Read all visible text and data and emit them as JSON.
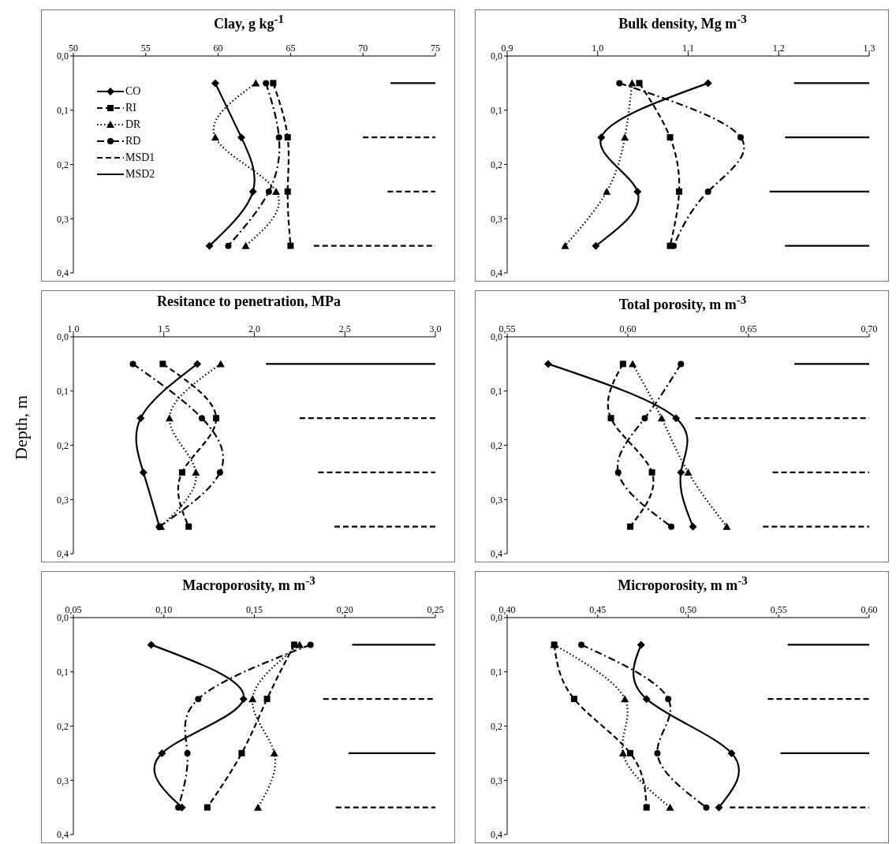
{
  "chart_data": [
    {
      "type": "line",
      "title": "Clay, g kg$^{-1}$",
      "legend": "top left",
      "xlim": [
        50,
        75
      ],
      "xticks": [
        50,
        55,
        60,
        65,
        70,
        75
      ],
      "ylim": [
        0.4,
        0
      ],
      "yticks": [
        {
          "value": 0,
          "label": "0,0"
        },
        {
          "value": 0.1,
          "label": "0,1"
        },
        {
          "value": 0.2,
          "label": "0,2"
        },
        {
          "value": 0.3,
          "label": "0,3"
        },
        {
          "value": 0.4,
          "label": "0,4"
        }
      ],
      "series": [
        {
          "name": "CO",
          "color": "#000000",
          "marker": "diamond",
          "line_style": "solid",
          "x": [
            59.8,
            61.6,
            62.4,
            59.4
          ],
          "values": [
            0.05,
            0.15,
            0.25,
            0.35
          ]
        },
        {
          "name": "RI",
          "color": "#000000",
          "marker": "square",
          "line_style": "dashed",
          "x": [
            63.8,
            64.8,
            64.8,
            65.0
          ],
          "values": [
            0.05,
            0.15,
            0.25,
            0.35
          ]
        },
        {
          "name": "DR",
          "color": "#000000",
          "marker": "triangle",
          "line_style": "dotted",
          "x": [
            62.6,
            59.8,
            64.0,
            61.9
          ],
          "values": [
            0.05,
            0.15,
            0.25,
            0.35
          ]
        },
        {
          "name": "RD",
          "color": "#000000",
          "marker": "circle",
          "line_style": "dashdot",
          "x": [
            63.3,
            64.2,
            63.5,
            60.7
          ],
          "values": [
            0.05,
            0.15,
            0.25,
            0.35
          ]
        },
        {
          "name": "MSD1",
          "color": "#000000",
          "marker": "none",
          "line_style": "dashed",
          "x": [
            70.0,
            75,
            null,
            71.7,
            75,
            null,
            66.6,
            75
          ],
          "values": [
            0.15,
            0.15,
            null,
            0.25,
            0.25,
            null,
            0.35,
            0.35
          ]
        },
        {
          "name": "MSD2",
          "color": "#000000",
          "marker": "none",
          "line_style": "solid",
          "x": [
            71.9,
            75
          ],
          "values": [
            0.05,
            0.05
          ]
        }
      ]
    },
    {
      "type": "line",
      "title": "Bulk density, Mg m$^{-3}$",
      "xlim": [
        0.9,
        1.3
      ],
      "xticks": [
        {
          "value": 0.9,
          "label": "0,9"
        },
        {
          "value": 1.0,
          "label": "1,0"
        },
        {
          "value": 1.1,
          "label": "1,1"
        },
        {
          "value": 1.2,
          "label": "1,2"
        },
        {
          "value": 1.3,
          "label": "1,3"
        }
      ],
      "ylim": [
        0.4,
        0
      ],
      "yticks": [
        {
          "value": 0,
          "label": "0,0"
        },
        {
          "value": 0.1,
          "label": "0,1"
        },
        {
          "value": 0.2,
          "label": "0,2"
        },
        {
          "value": 0.3,
          "label": "0,3"
        },
        {
          "value": 0.4,
          "label": "0,4"
        }
      ],
      "series": [
        {
          "color": "#000000",
          "marker": "diamond",
          "line_style": "solid",
          "x": [
            1.122,
            1.004,
            1.044,
            0.998
          ],
          "values": [
            0.05,
            0.15,
            0.25,
            0.35
          ]
        },
        {
          "color": "#000000",
          "marker": "square",
          "line_style": "dashed",
          "x": [
            1.046,
            1.08,
            1.09,
            1.08
          ],
          "values": [
            0.05,
            0.15,
            0.25,
            0.35
          ]
        },
        {
          "color": "#000000",
          "marker": "triangle",
          "line_style": "dotted",
          "x": [
            1.038,
            1.03,
            1.01,
            0.964
          ],
          "values": [
            0.05,
            0.15,
            0.25,
            0.35
          ]
        },
        {
          "color": "#000000",
          "marker": "circle",
          "line_style": "dashdot",
          "x": [
            1.024,
            1.158,
            1.122,
            1.084
          ],
          "values": [
            0.05,
            0.15,
            0.25,
            0.35
          ]
        },
        {
          "color": "#000000",
          "marker": "none",
          "line_style": "solid",
          "x": [
            1.217,
            1.3
          ],
          "values": [
            0.05,
            0.05
          ]
        },
        {
          "color": "#000000",
          "marker": "none",
          "line_style": "solid",
          "x": [
            1.207,
            1.3
          ],
          "values": [
            0.15,
            0.15
          ]
        },
        {
          "color": "#000000",
          "marker": "none",
          "line_style": "solid",
          "x": [
            1.19,
            1.3
          ],
          "values": [
            0.25,
            0.25
          ]
        },
        {
          "color": "#000000",
          "marker": "none",
          "line_style": "solid",
          "x": [
            1.207,
            1.3
          ],
          "values": [
            0.35,
            0.35
          ]
        }
      ]
    },
    {
      "type": "line",
      "title": "Resitance to penetration, MPa",
      "ylabel": "Depth, m",
      "xlim": [
        1.0,
        3.0
      ],
      "xticks": [
        {
          "value": 1.0,
          "label": "1,0"
        },
        {
          "value": 1.5,
          "label": "1,5"
        },
        {
          "value": 2.0,
          "label": "2,0"
        },
        {
          "value": 2.5,
          "label": "2,5"
        },
        {
          "value": 3.0,
          "label": "3,0"
        }
      ],
      "ylim": [
        0.4,
        0
      ],
      "yticks": [
        {
          "value": 0,
          "label": "0,0"
        },
        {
          "value": 0.1,
          "label": "0,1"
        },
        {
          "value": 0.2,
          "label": "0,2"
        },
        {
          "value": 0.3,
          "label": "0,3"
        },
        {
          "value": 0.4,
          "label": "0,4"
        }
      ],
      "series": [
        {
          "color": "#000000",
          "marker": "diamond",
          "line_style": "solid",
          "x": [
            1.685,
            1.372,
            1.387,
            1.475
          ],
          "values": [
            0.05,
            0.15,
            0.25,
            0.35
          ]
        },
        {
          "color": "#000000",
          "marker": "square",
          "line_style": "dashed",
          "x": [
            1.494,
            1.789,
            1.601,
            1.637
          ],
          "values": [
            0.05,
            0.15,
            0.25,
            0.35
          ]
        },
        {
          "color": "#000000",
          "marker": "triangle",
          "line_style": "dotted",
          "x": [
            1.814,
            1.531,
            1.677,
            1.484
          ],
          "values": [
            0.05,
            0.15,
            0.25,
            0.35
          ]
        },
        {
          "color": "#000000",
          "marker": "circle",
          "line_style": "dashdot",
          "x": [
            1.329,
            1.71,
            1.81,
            1.475
          ],
          "values": [
            0.05,
            0.15,
            0.25,
            0.35
          ]
        },
        {
          "color": "#000000",
          "marker": "none",
          "line_style": "dashed",
          "x": [
            2.25,
            3.0,
            null,
            2.353,
            3.0,
            null,
            2.442,
            3.0
          ],
          "values": [
            0.15,
            0.15,
            null,
            0.25,
            0.25,
            null,
            0.35,
            0.35
          ]
        },
        {
          "color": "#000000",
          "marker": "none",
          "line_style": "solid",
          "x": [
            2.064,
            3.0
          ],
          "values": [
            0.05,
            0.05
          ]
        }
      ]
    },
    {
      "type": "line",
      "title": "Total porosity, m m$^{-3}$",
      "xlim": [
        0.55,
        0.7
      ],
      "xticks": [
        {
          "value": 0.55,
          "label": "0,55"
        },
        {
          "value": 0.6,
          "label": "0,60"
        },
        {
          "value": 0.65,
          "label": "0,65"
        },
        {
          "value": 0.7,
          "label": "0,70"
        }
      ],
      "ylim": [
        0.4,
        0
      ],
      "yticks": [
        {
          "value": 0,
          "label": "0,0"
        },
        {
          "value": 0.1,
          "label": "0,1"
        },
        {
          "value": 0.2,
          "label": "0,2"
        },
        {
          "value": 0.3,
          "label": "0,3"
        },
        {
          "value": 0.4,
          "label": "0,4"
        }
      ],
      "series": [
        {
          "color": "#000000",
          "marker": "diamond",
          "line_style": "solid",
          "x": [
            0.567,
            0.62,
            0.622,
            0.627
          ],
          "values": [
            0.05,
            0.15,
            0.25,
            0.35
          ]
        },
        {
          "color": "#000000",
          "marker": "square",
          "line_style": "dashed",
          "x": [
            0.598,
            0.593,
            0.61,
            0.601
          ],
          "values": [
            0.05,
            0.15,
            0.25,
            0.35
          ]
        },
        {
          "color": "#000000",
          "marker": "triangle",
          "line_style": "dotted",
          "x": [
            0.602,
            0.614,
            0.625,
            0.641
          ],
          "values": [
            0.05,
            0.15,
            0.25,
            0.35
          ]
        },
        {
          "color": "#000000",
          "marker": "circle",
          "line_style": "dashdot",
          "x": [
            0.622,
            0.607,
            0.596,
            0.618
          ],
          "values": [
            0.05,
            0.15,
            0.25,
            0.35
          ]
        },
        {
          "color": "#000000",
          "marker": "none",
          "line_style": "dashed",
          "x": [
            0.628,
            0.7,
            null,
            0.66,
            0.7,
            null,
            0.656,
            0.7
          ],
          "values": [
            0.15,
            0.15,
            null,
            0.25,
            0.25,
            null,
            0.35,
            0.35
          ]
        },
        {
          "color": "#000000",
          "marker": "none",
          "line_style": "solid",
          "x": [
            0.669,
            0.7
          ],
          "values": [
            0.05,
            0.05
          ]
        }
      ]
    },
    {
      "type": "line",
      "title": "Macroporosity, m m$^{-3}$",
      "xlim": [
        0.05,
        0.25
      ],
      "xticks": [
        {
          "value": 0.05,
          "label": "0,05"
        },
        {
          "value": 0.1,
          "label": "0,10"
        },
        {
          "value": 0.15,
          "label": "0,15"
        },
        {
          "value": 0.2,
          "label": "0,20"
        },
        {
          "value": 0.25,
          "label": "0,25"
        }
      ],
      "ylim": [
        0.4,
        0
      ],
      "yticks": [
        {
          "value": 0,
          "label": "0,0"
        },
        {
          "value": 0.1,
          "label": "0,1"
        },
        {
          "value": 0.2,
          "label": "0,2"
        },
        {
          "value": 0.3,
          "label": "0,3"
        },
        {
          "value": 0.4,
          "label": "0,4"
        }
      ],
      "series": [
        {
          "color": "#000000",
          "marker": "diamond",
          "line_style": "solid",
          "x": [
            0.093,
            0.144,
            0.099,
            0.11
          ],
          "values": [
            0.05,
            0.15,
            0.25,
            0.35
          ]
        },
        {
          "color": "#000000",
          "marker": "square",
          "line_style": "dashed",
          "x": [
            0.172,
            0.157,
            0.143,
            0.124
          ],
          "values": [
            0.05,
            0.15,
            0.25,
            0.35
          ]
        },
        {
          "color": "#000000",
          "marker": "triangle",
          "line_style": "dotted",
          "x": [
            0.175,
            0.149,
            0.161,
            0.152
          ],
          "values": [
            0.05,
            0.15,
            0.25,
            0.35
          ]
        },
        {
          "color": "#000000",
          "marker": "circle",
          "line_style": "dashdot",
          "x": [
            0.181,
            0.119,
            0.113,
            0.108
          ],
          "values": [
            0.05,
            0.15,
            0.25,
            0.35
          ]
        },
        {
          "color": "#000000",
          "marker": "none",
          "line_style": "dashed",
          "x": [
            0.188,
            0.25,
            null,
            0.195,
            0.25
          ],
          "values": [
            0.15,
            0.15,
            null,
            0.35,
            0.35
          ]
        },
        {
          "color": "#000000",
          "marker": "none",
          "line_style": "solid",
          "x": [
            0.204,
            0.25,
            null,
            0.202,
            0.25
          ],
          "values": [
            0.05,
            0.05,
            null,
            0.25,
            0.25
          ]
        }
      ]
    },
    {
      "type": "line",
      "title": "Microporosity, m m$^{-3}$",
      "xlim": [
        0.4,
        0.6
      ],
      "xticks": [
        {
          "value": 0.4,
          "label": "0,40"
        },
        {
          "value": 0.45,
          "label": "0,45"
        },
        {
          "value": 0.5,
          "label": "0,50"
        },
        {
          "value": 0.55,
          "label": "0,55"
        },
        {
          "value": 0.6,
          "label": "0,60"
        }
      ],
      "ylim": [
        0.4,
        0
      ],
      "yticks": [
        {
          "value": 0,
          "label": "0,0"
        },
        {
          "value": 0.1,
          "label": "0,1"
        },
        {
          "value": 0.2,
          "label": "0,2"
        },
        {
          "value": 0.3,
          "label": "0,3"
        },
        {
          "value": 0.4,
          "label": "0,4"
        }
      ],
      "series": [
        {
          "color": "#000000",
          "marker": "diamond",
          "line_style": "solid",
          "x": [
            0.474,
            0.477,
            0.524,
            0.517
          ],
          "values": [
            0.05,
            0.15,
            0.25,
            0.35
          ]
        },
        {
          "color": "#000000",
          "marker": "square",
          "line_style": "dashed",
          "x": [
            0.426,
            0.437,
            0.468,
            0.477
          ],
          "values": [
            0.05,
            0.15,
            0.25,
            0.35
          ]
        },
        {
          "color": "#000000",
          "marker": "triangle",
          "line_style": "dotted",
          "x": [
            0.426,
            0.465,
            0.464,
            0.49
          ],
          "values": [
            0.05,
            0.15,
            0.25,
            0.35
          ]
        },
        {
          "color": "#000000",
          "marker": "circle",
          "line_style": "dashdot",
          "x": [
            0.441,
            0.489,
            0.483,
            0.51
          ],
          "values": [
            0.05,
            0.15,
            0.25,
            0.35
          ]
        },
        {
          "color": "#000000",
          "marker": "none",
          "line_style": "dashed",
          "x": [
            0.544,
            0.6,
            null,
            0.523,
            0.6
          ],
          "values": [
            0.15,
            0.15,
            null,
            0.35,
            0.35
          ]
        },
        {
          "color": "#000000",
          "marker": "none",
          "line_style": "solid",
          "x": [
            0.555,
            0.6,
            null,
            0.551,
            0.6
          ],
          "values": [
            0.05,
            0.05,
            null,
            0.25,
            0.25
          ]
        }
      ]
    }
  ]
}
